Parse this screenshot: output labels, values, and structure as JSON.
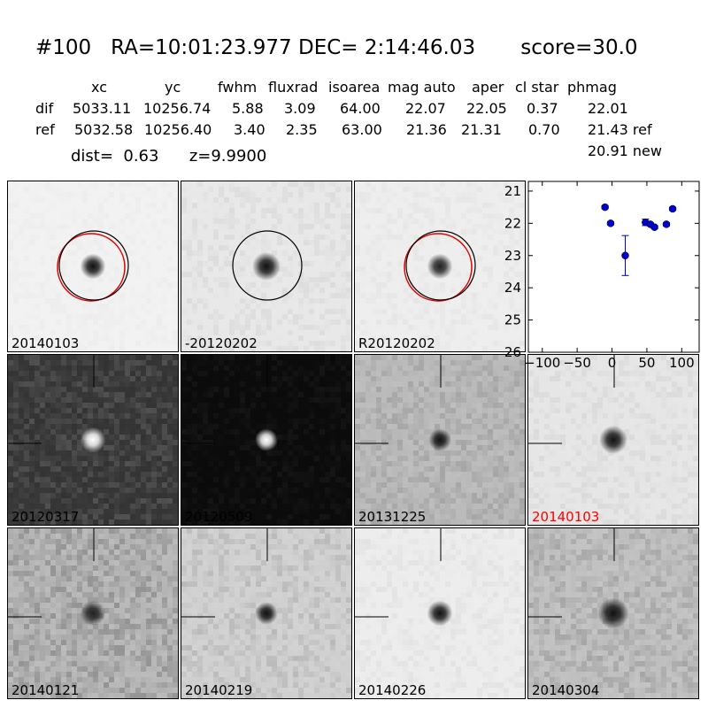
{
  "header": {
    "title": "#100   RA=10:01:23.977 DEC= 2:14:46.03       score=30.0",
    "columns": [
      "xc",
      "yc",
      "fwhm",
      "fluxrad",
      "isoarea",
      "mag auto",
      "aper",
      "cl star",
      "phmag"
    ],
    "rows": [
      {
        "label": "dif",
        "values": [
          "5033.11",
          "10256.74",
          "5.88",
          "3.09",
          "64.00",
          "22.07",
          "22.05",
          "0.37",
          "22.01"
        ]
      },
      {
        "label": "ref",
        "values": [
          "5032.58",
          "10256.40",
          "3.40",
          "2.35",
          "63.00",
          "21.36",
          "21.31",
          "0.70",
          "21.43 ref"
        ]
      }
    ],
    "phmag_new": "20.91 new",
    "dist": "dist=  0.63",
    "z": "z=9.9900"
  },
  "panels": [
    {
      "label": "20140103",
      "bg": "#f2f2f2",
      "noise": 0.02,
      "spot": "#111",
      "spot_r": 9,
      "circle": "both",
      "marker": false
    },
    {
      "label": "-20120202",
      "bg": "#e8e8e8",
      "noise": 0.05,
      "spot": "#111",
      "spot_r": 10,
      "circle": "black",
      "marker": false
    },
    {
      "label": "R20120202",
      "bg": "#eeeeee",
      "noise": 0.03,
      "spot": "#222",
      "spot_r": 9,
      "circle": "both",
      "marker": false
    },
    {
      "label": "20120317",
      "bg": "#3a3a3a",
      "noise": 0.12,
      "spot": "#ffffff",
      "spot_r": 9,
      "circle": "none",
      "marker": true
    },
    {
      "label": "20120509",
      "bg": "#0c0c0c",
      "noise": 0.04,
      "spot": "#ffffff",
      "spot_r": 8,
      "circle": "none",
      "marker": true
    },
    {
      "label": "20131225",
      "bg": "#b8b8b8",
      "noise": 0.1,
      "spot": "#111",
      "spot_r": 8,
      "circle": "none",
      "marker": true
    },
    {
      "label": "20140103",
      "bg": "#e6e6e6",
      "noise": 0.05,
      "spot": "#111",
      "spot_r": 10,
      "circle": "none",
      "marker": true,
      "color": "#ff0000"
    },
    {
      "label": "20140121",
      "bg": "#b0b0b0",
      "noise": 0.16,
      "spot": "#222",
      "spot_r": 9,
      "circle": "none",
      "marker": true
    },
    {
      "label": "20140219",
      "bg": "#cfcfcf",
      "noise": 0.1,
      "spot": "#111",
      "spot_r": 8,
      "circle": "none",
      "marker": true
    },
    {
      "label": "20140226",
      "bg": "#ededed",
      "noise": 0.04,
      "spot": "#111",
      "spot_r": 9,
      "circle": "none",
      "marker": true
    },
    {
      "label": "20140304",
      "bg": "#bdbdbd",
      "noise": 0.12,
      "spot": "#111",
      "spot_r": 11,
      "circle": "none",
      "marker": true
    }
  ],
  "chart_data": {
    "type": "scatter",
    "xlim": [
      -120,
      125
    ],
    "ylim": [
      26,
      20.7
    ],
    "xticks": [
      -100,
      -50,
      0,
      50,
      100
    ],
    "xticklabels": [
      "−100",
      "−50",
      "0",
      "50",
      "100"
    ],
    "yticks": [
      21,
      22,
      23,
      24,
      25,
      26
    ],
    "points": [
      {
        "x": -10,
        "y": 21.5,
        "err": 0.05
      },
      {
        "x": -2,
        "y": 22.0,
        "err": 0.05
      },
      {
        "x": 19,
        "y": 23.0,
        "err": 0.62
      },
      {
        "x": 48,
        "y": 21.97,
        "err": 0.1
      },
      {
        "x": 55,
        "y": 22.03,
        "err": 0.05
      },
      {
        "x": 61,
        "y": 22.12,
        "err": 0.05
      },
      {
        "x": 78,
        "y": 22.03,
        "err": 0.05
      },
      {
        "x": 87,
        "y": 21.55,
        "err": 0.05
      }
    ],
    "color": "#0000cc",
    "grid": false
  }
}
